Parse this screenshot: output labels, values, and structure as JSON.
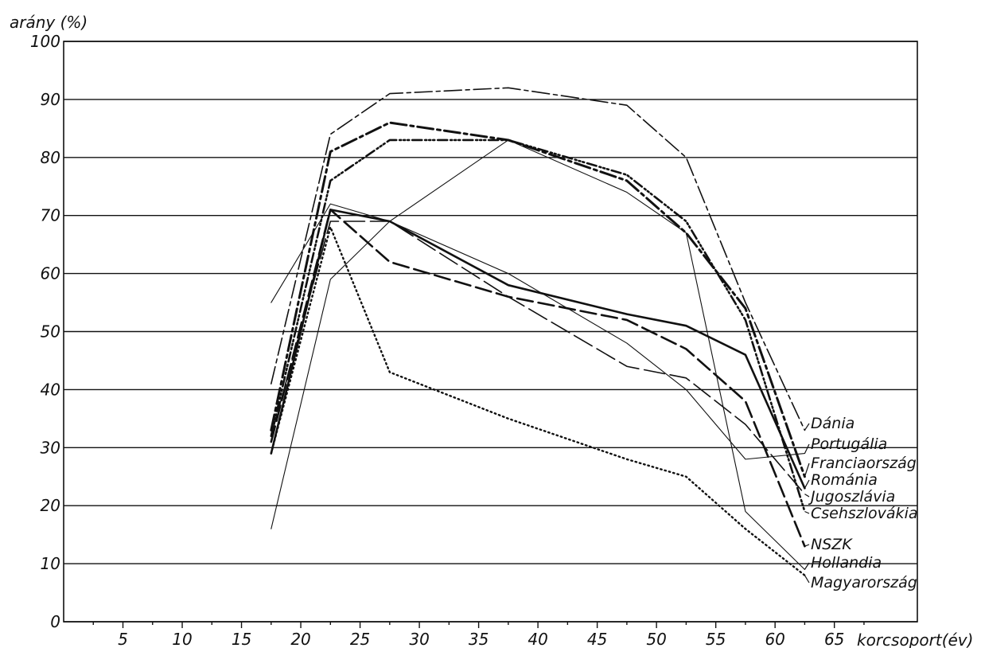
{
  "chart_data": {
    "type": "line",
    "ylabel": "arány (%)",
    "xlabel": "korcsoport(év)",
    "xlim": [
      0,
      72
    ],
    "ylim": [
      0,
      100
    ],
    "grid": "horizontal",
    "xticks": [
      "5",
      "10",
      "15",
      "20",
      "25",
      "30",
      "35",
      "40",
      "45",
      "50",
      "55",
      "60",
      "65"
    ],
    "yticks": [
      "0",
      "10",
      "20",
      "30",
      "40",
      "50",
      "60",
      "70",
      "80",
      "90",
      "100"
    ],
    "x": [
      17.5,
      22.5,
      27.5,
      37.5,
      47.5,
      52.5,
      57.5,
      62.5
    ],
    "series": [
      {
        "name": "Dánia",
        "values": [
          41,
          84,
          91,
          92,
          89,
          80,
          55,
          33
        ]
      },
      {
        "name": "Portugália",
        "values": [
          55,
          72,
          69,
          60,
          48,
          40,
          28,
          29
        ]
      },
      {
        "name": "Franciaország",
        "values": [
          33,
          81,
          86,
          83,
          76,
          67,
          54,
          25
        ]
      },
      {
        "name": "Románia",
        "values": [
          29,
          71,
          69,
          58,
          53,
          51,
          46,
          23
        ]
      },
      {
        "name": "Jugoszlávia",
        "values": [
          32,
          69,
          69,
          56,
          44,
          42,
          34,
          22
        ]
      },
      {
        "name": "Csehszlovákia",
        "values": [
          32,
          76,
          83,
          83,
          77,
          69,
          52,
          19
        ]
      },
      {
        "name": "NSZK",
        "values": [
          31,
          71,
          62,
          56,
          52,
          47,
          38,
          13
        ]
      },
      {
        "name": "Hollandia",
        "values": [
          16,
          59,
          69,
          83,
          74,
          67,
          19,
          9
        ]
      },
      {
        "name": "Magyarország",
        "values": [
          29,
          68,
          43,
          35,
          28,
          25,
          16,
          8
        ]
      }
    ]
  }
}
